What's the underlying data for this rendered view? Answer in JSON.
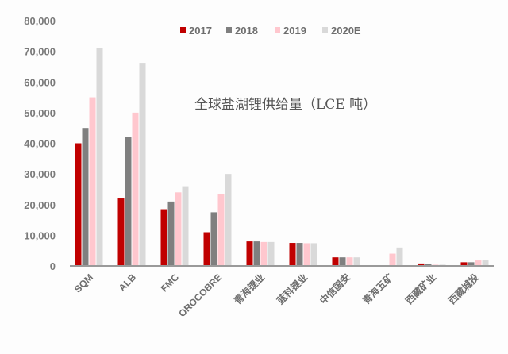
{
  "chart_data": {
    "type": "bar",
    "title": "全球盐湖锂供给量（LCE 吨）",
    "xlabel": "",
    "ylabel": "",
    "ylim": [
      0,
      80000
    ],
    "yticks": [
      "0",
      "10,000",
      "20,000",
      "30,000",
      "40,000",
      "50,000",
      "60,000",
      "70,000",
      "80,000"
    ],
    "ytick_values": [
      0,
      10000,
      20000,
      30000,
      40000,
      50000,
      60000,
      70000,
      80000
    ],
    "grid": false,
    "legend_position": "top",
    "categories": [
      "SQM",
      "ALB",
      "FMC",
      "OROCOBRE",
      "青海锂业",
      "蓝科锂业",
      "中信国安",
      "青海五矿",
      "西藏矿业",
      "西藏城投"
    ],
    "series": [
      {
        "name": "2017",
        "color": "#c00000",
        "values": [
          40000,
          22000,
          18500,
          11000,
          8000,
          7500,
          2800,
          0,
          800,
          1200
        ]
      },
      {
        "name": "2018",
        "color": "#7f7f7f",
        "values": [
          45000,
          42000,
          21000,
          17500,
          8000,
          7500,
          2800,
          0,
          700,
          1200
        ]
      },
      {
        "name": "2019",
        "color": "#ffc7ce",
        "values": [
          55000,
          50000,
          24000,
          23500,
          7800,
          7400,
          2800,
          4000,
          400,
          1800
        ]
      },
      {
        "name": "2020E",
        "color": "#d9d9d9",
        "values": [
          71000,
          66000,
          26000,
          30000,
          7800,
          7400,
          2800,
          6000,
          400,
          1800
        ]
      }
    ]
  }
}
